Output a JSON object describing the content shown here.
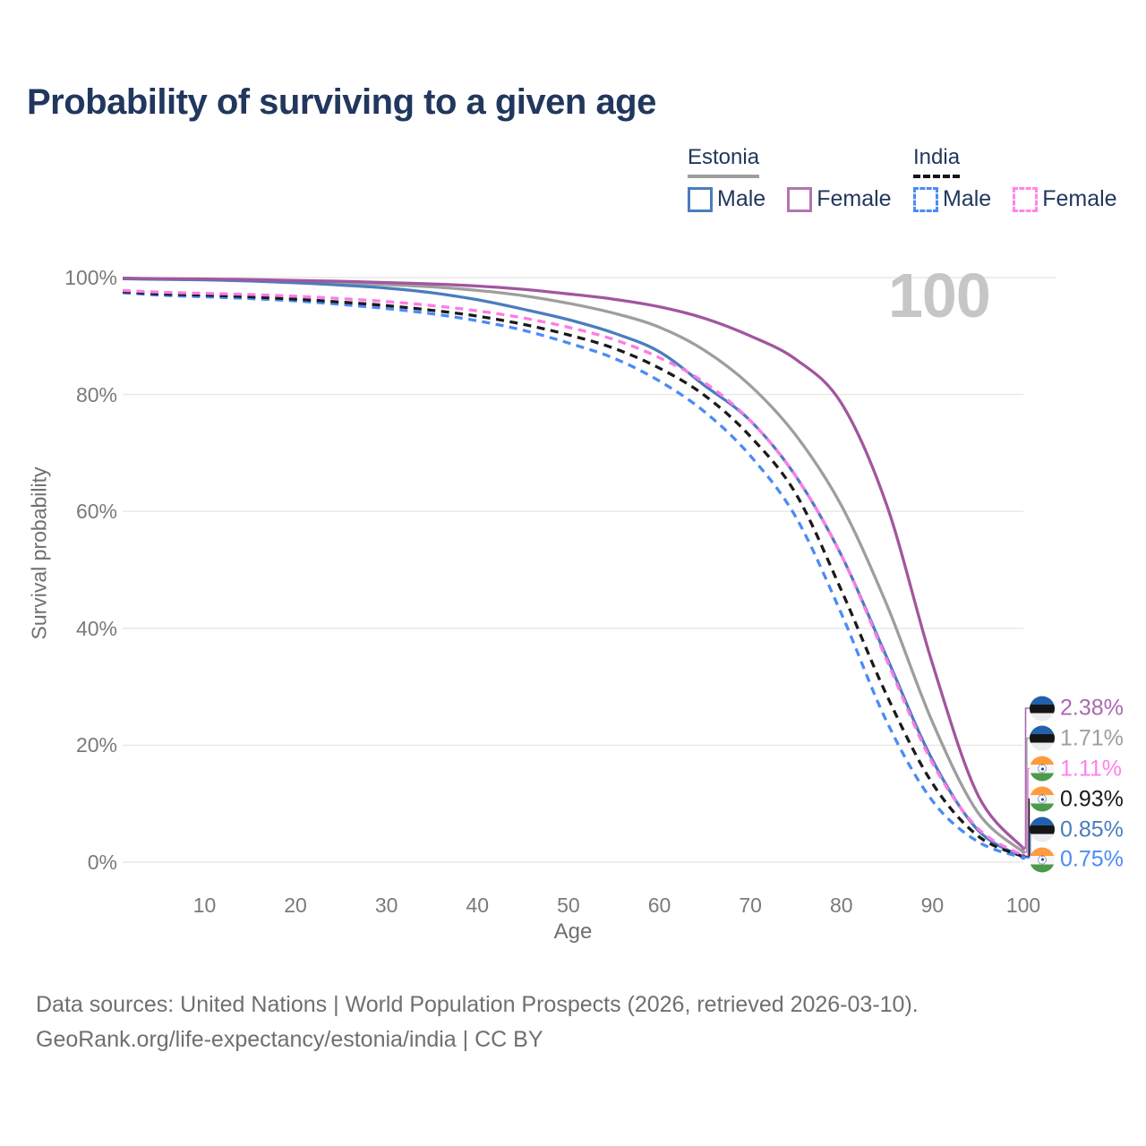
{
  "title": "Probability of surviving to a given age",
  "legend": {
    "groups": [
      {
        "name": "Estonia",
        "line_style": "solid",
        "underline_color": "#9e9e9e",
        "items": [
          {
            "label": "Male",
            "color": "#4a7dbd"
          },
          {
            "label": "Female",
            "color": "#b273b0"
          }
        ]
      },
      {
        "name": "India",
        "line_style": "dashed",
        "underline_color": "#141414",
        "items": [
          {
            "label": "Male",
            "color": "#4b8bf5"
          },
          {
            "label": "Female",
            "color": "#ff85ec"
          }
        ]
      }
    ]
  },
  "watermark": "100",
  "y_axis": {
    "title": "Survival probability"
  },
  "x_axis": {
    "title": "Age"
  },
  "end_labels": [
    {
      "flag": "estonia",
      "value": "2.38%",
      "color": "#a86ab0",
      "series": "estonia_female"
    },
    {
      "flag": "estonia",
      "value": "1.71%",
      "color": "#9e9e9e",
      "series": "estonia_both"
    },
    {
      "flag": "india",
      "value": "1.11%",
      "color": "#ff80ec",
      "series": "india_female"
    },
    {
      "flag": "india",
      "value": "0.93%",
      "color": "#1a1a1a",
      "series": "india_both"
    },
    {
      "flag": "estonia",
      "value": "0.85%",
      "color": "#4a7dbd",
      "series": "estonia_male"
    },
    {
      "flag": "india",
      "value": "0.75%",
      "color": "#4b8bf5",
      "series": "india_male"
    }
  ],
  "footer": {
    "line1": "Data sources: United Nations | World Population Prospects (2026, retrieved 2026-03-10).",
    "line2": "GeoRank.org/life-expectancy/estonia/india | CC BY"
  },
  "chart_data": {
    "type": "line",
    "title": "Probability of surviving to a given age",
    "xlabel": "Age",
    "ylabel": "Survival probability",
    "xlim": [
      1,
      100
    ],
    "ylim": [
      0,
      100
    ],
    "grid": "horizontal",
    "legend_position": "top-right",
    "x_ticks": [
      10,
      20,
      30,
      40,
      50,
      60,
      70,
      80,
      90,
      100
    ],
    "y_ticks": [
      0,
      20,
      40,
      60,
      80,
      100
    ],
    "y_tick_labels": [
      "0%",
      "20%",
      "40%",
      "60%",
      "80%",
      "100%"
    ],
    "x": [
      1,
      5,
      10,
      15,
      20,
      25,
      30,
      35,
      40,
      45,
      50,
      55,
      60,
      65,
      70,
      75,
      80,
      85,
      90,
      95,
      100
    ],
    "series": [
      {
        "id": "estonia_both",
        "name": "Estonia (both sexes)",
        "color": "#9e9e9e",
        "dash": false,
        "values": [
          99.85,
          99.75,
          99.65,
          99.5,
          99.3,
          99.1,
          98.8,
          98.4,
          97.8,
          96.9,
          95.6,
          93.9,
          91.5,
          87.5,
          81.5,
          73.0,
          61.0,
          44.0,
          24.0,
          8.5,
          1.71
        ]
      },
      {
        "id": "estonia_male",
        "name": "Estonia Male",
        "color": "#4a7dbd",
        "dash": false,
        "values": [
          99.8,
          99.7,
          99.6,
          99.4,
          99.1,
          98.7,
          98.2,
          97.4,
          96.2,
          94.6,
          92.8,
          90.5,
          87.3,
          81.5,
          75.5,
          66.0,
          52.5,
          35.0,
          17.5,
          5.5,
          0.85
        ]
      },
      {
        "id": "estonia_female",
        "name": "Estonia Female",
        "color": "#a2569f",
        "dash": false,
        "values": [
          99.9,
          99.8,
          99.75,
          99.65,
          99.5,
          99.35,
          99.15,
          98.9,
          98.55,
          98.0,
          97.2,
          96.3,
          95.0,
          93.0,
          90.0,
          86.0,
          78.5,
          61.0,
          34.0,
          11.5,
          2.38
        ]
      },
      {
        "id": "india_male",
        "name": "India Male",
        "color": "#4b8bf5",
        "dash": true,
        "values": [
          97.4,
          97.0,
          96.7,
          96.4,
          96.0,
          95.4,
          94.7,
          93.8,
          92.6,
          91.0,
          88.8,
          86.2,
          82.3,
          77.0,
          69.5,
          59.0,
          42.5,
          24.0,
          10.5,
          3.5,
          0.75
        ]
      },
      {
        "id": "india_both",
        "name": "India (both sexes)",
        "color": "#1a1a1a",
        "dash": true,
        "values": [
          97.6,
          97.2,
          97.0,
          96.7,
          96.3,
          95.8,
          95.2,
          94.4,
          93.4,
          92.0,
          90.2,
          87.9,
          84.5,
          79.8,
          72.8,
          63.0,
          46.5,
          28.5,
          13.5,
          4.5,
          0.93
        ]
      },
      {
        "id": "india_female",
        "name": "India Female",
        "color": "#ff7ae6",
        "dash": true,
        "values": [
          97.8,
          97.5,
          97.3,
          97.1,
          96.8,
          96.4,
          95.9,
          95.2,
          94.3,
          93.1,
          91.5,
          89.4,
          86.3,
          82.0,
          75.5,
          66.0,
          52.5,
          34.5,
          17.0,
          5.8,
          1.11
        ]
      }
    ]
  }
}
